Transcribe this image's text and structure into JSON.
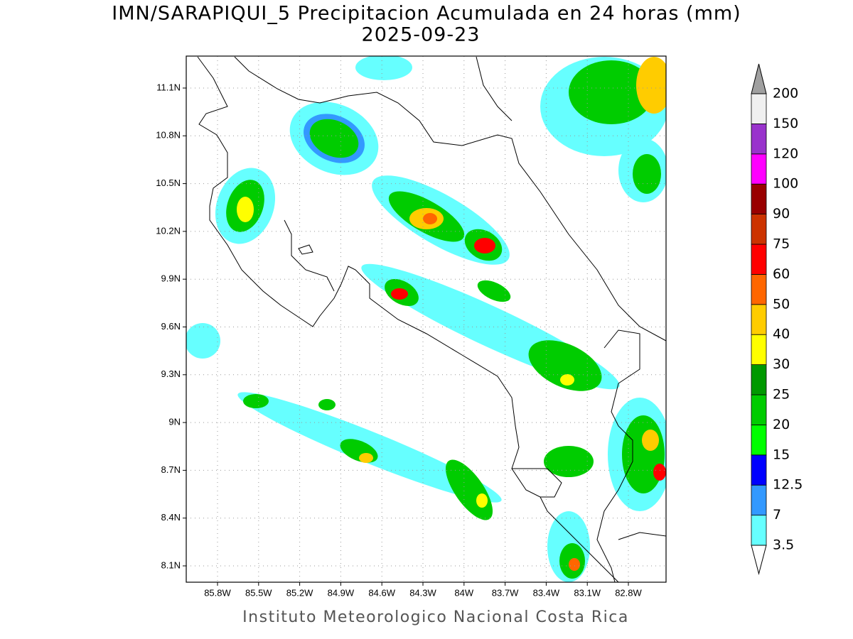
{
  "map": {
    "title": "IMN/SARAPIQUI_5 Precipitacion Acumulada en 24 horas (mm)",
    "date": "2025-09-23",
    "lon_labels": [
      "85.8W",
      "85.5W",
      "85.2W",
      "84.9W",
      "84.6W",
      "84.3W",
      "84W",
      "83.7W",
      "83.4W",
      "83.1W",
      "82.8W"
    ],
    "lat_labels": [
      "11.1N",
      "10.8N",
      "10.5N",
      "10.2N",
      "9.9N",
      "9.6N",
      "9.3N",
      "9N",
      "8.7N",
      "8.4N",
      "8.1N"
    ],
    "legend": {
      "levels": [
        3.5,
        7,
        12.5,
        15,
        20,
        25,
        30,
        40,
        50,
        60,
        75,
        90,
        100,
        120,
        150,
        200
      ],
      "colors": [
        "#66ffff",
        "#3399ff",
        "#0000ff",
        "#00ff00",
        "#00cc00",
        "#009900",
        "#ffff00",
        "#ffcc00",
        "#ff6600",
        "#ff0000",
        "#cc3300",
        "#990000",
        "#ff00ff",
        "#9933cc",
        "#f0f0f0"
      ],
      "under_color": "#ffffff",
      "over_color": "#a0a0a0"
    },
    "footer": "Instituto Meteorologico Nacional Costa Rica"
  }
}
